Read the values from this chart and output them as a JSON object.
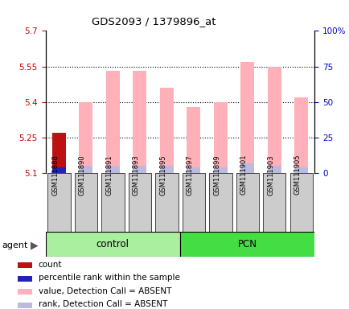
{
  "title": "GDS2093 / 1379896_at",
  "samples": [
    "GSM111888",
    "GSM111890",
    "GSM111891",
    "GSM111893",
    "GSM111895",
    "GSM111897",
    "GSM111899",
    "GSM111901",
    "GSM111903",
    "GSM111905"
  ],
  "value_pink": [
    5.27,
    5.4,
    5.53,
    5.53,
    5.46,
    5.38,
    5.4,
    5.57,
    5.55,
    5.42
  ],
  "rank_blue": [
    5.125,
    5.13,
    5.13,
    5.13,
    5.13,
    5.125,
    5.125,
    5.14,
    5.13,
    5.125
  ],
  "count_red_value": 5.27,
  "percentile_blue_value": 5.125,
  "ylim": [
    5.1,
    5.7
  ],
  "yticks": [
    5.1,
    5.25,
    5.4,
    5.55,
    5.7
  ],
  "ytick_labels": [
    "5.1",
    "5.25",
    "5.4",
    "5.55",
    "5.7"
  ],
  "y2ticks": [
    0,
    25,
    50,
    75,
    100
  ],
  "y2tick_labels": [
    "0",
    "25",
    "50",
    "75",
    "100%"
  ],
  "bar_width": 0.5,
  "pink_color": "#FFB0B8",
  "blue_color": "#BBBBDD",
  "red_color": "#BB1111",
  "darkblue_color": "#2222BB",
  "left_tick_color": "#CC0000",
  "right_tick_color": "#0000CC",
  "ctrl_color": "#AAEEA0",
  "pcn_color": "#44DD44",
  "xticklabel_bg": "#CCCCCC",
  "legend_items": [
    {
      "color": "#BB1111",
      "label": "count"
    },
    {
      "color": "#2222BB",
      "label": "percentile rank within the sample"
    },
    {
      "color": "#FFB0B8",
      "label": "value, Detection Call = ABSENT"
    },
    {
      "color": "#BBBBDD",
      "label": "rank, Detection Call = ABSENT"
    }
  ]
}
